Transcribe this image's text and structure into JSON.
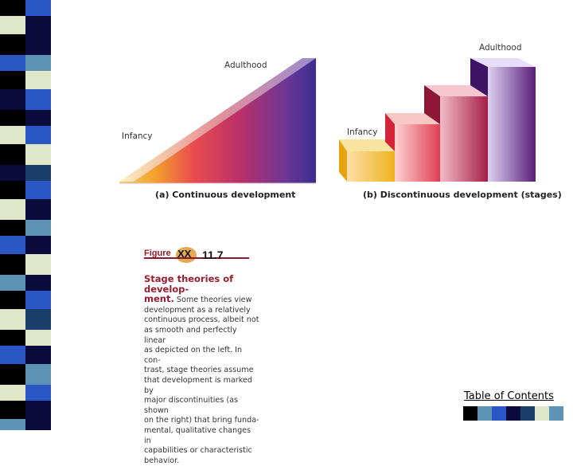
{
  "panel_a": {
    "top_label": "Adulthood",
    "left_label": "Infancy",
    "caption": "(a) Continuous development"
  },
  "panel_b": {
    "top_label": "Adulthood",
    "left_label": "Infancy",
    "caption": "(b) Discontinuous development (stages)"
  },
  "figure_caption": {
    "figure_word": "Figure",
    "figure_number": "11.7",
    "title_line1": "Stage theories of develop-",
    "title_line2": "ment.",
    "body_lines": [
      " Some theories view",
      "development as a relatively",
      "continuous process, albeit not",
      "as smooth and perfectly linear",
      "as depicted on the left. In con-",
      "trast, stage theories assume",
      "that development is marked by",
      "major discontinuities (as shown",
      "on the right) that bring funda-",
      "mental, qualitative changes in",
      "capabilities or characteristic",
      "behavior."
    ]
  },
  "toc_link": "Table of Contents",
  "strip_colors": [
    "#0a0a3c",
    "#e0e6c8",
    "#2a57c4",
    "#0a0a3c",
    "#1b3f6b",
    "#5d93b4",
    "#e0e6c8",
    "#2a57c4",
    "#0a0a3c"
  ],
  "toc_swatch_colors": [
    "#000000",
    "#5d93b4",
    "#2a57c4",
    "#0a0a3c",
    "#1b3f6b",
    "#e0e6c8",
    "#5d93b4"
  ]
}
